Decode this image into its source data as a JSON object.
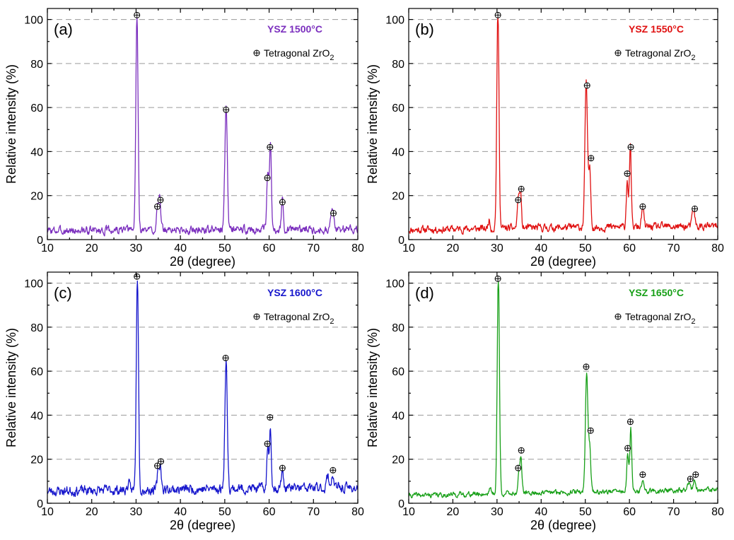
{
  "chart_data": [
    {
      "type": "line",
      "panel_label": "(a)",
      "sample_label": "YSZ 1500°C",
      "color": "#7b2fbe",
      "legend": {
        "symbol": "⊕",
        "label_main": "Tetragonal ZrO",
        "label_sub": "2"
      },
      "xlabel": "2θ (degree)",
      "ylabel": "Relative intensity (%)",
      "xlim": [
        10,
        80
      ],
      "ylim": [
        0,
        105
      ],
      "xticks": [
        10,
        20,
        30,
        40,
        50,
        60,
        70,
        80
      ],
      "yticks": [
        0,
        20,
        40,
        60,
        80,
        100
      ],
      "grid": "horizontal dashed",
      "peaks": [
        {
          "x": 30.2,
          "y": 100,
          "w": 0.35
        },
        {
          "x": 34.8,
          "y": 12,
          "w": 0.3
        },
        {
          "x": 35.3,
          "y": 15,
          "w": 0.3
        },
        {
          "x": 50.3,
          "y": 56,
          "w": 0.4
        },
        {
          "x": 59.7,
          "y": 25,
          "w": 0.3
        },
        {
          "x": 60.3,
          "y": 39,
          "w": 0.3
        },
        {
          "x": 63.0,
          "y": 14,
          "w": 0.3
        },
        {
          "x": 74.2,
          "y": 9,
          "w": 0.4
        }
      ],
      "peak_markers": [
        [
          30.2,
          102
        ],
        [
          34.8,
          15
        ],
        [
          35.5,
          18
        ],
        [
          50.3,
          59
        ],
        [
          59.6,
          28
        ],
        [
          60.2,
          42
        ],
        [
          63.0,
          17
        ],
        [
          74.5,
          12
        ]
      ],
      "baseline": [
        4,
        4.5,
        5
      ],
      "noise": 1.6,
      "seed": 3
    },
    {
      "type": "line",
      "panel_label": "(b)",
      "sample_label": "YSZ 1550°C",
      "color": "#e01010",
      "legend": {
        "symbol": "⊕",
        "label_main": "Tetragonal ZrO",
        "label_sub": "2"
      },
      "xlabel": "2θ (degree)",
      "ylabel": "Relative intensity (%)",
      "xlim": [
        10,
        80
      ],
      "ylim": [
        0,
        105
      ],
      "xticks": [
        10,
        20,
        30,
        40,
        50,
        60,
        70,
        80
      ],
      "yticks": [
        0,
        20,
        40,
        60,
        80,
        100
      ],
      "grid": "horizontal dashed",
      "peaks": [
        {
          "x": 28.2,
          "y": 4,
          "w": 0.3
        },
        {
          "x": 30.2,
          "y": 100,
          "w": 0.35
        },
        {
          "x": 34.8,
          "y": 14,
          "w": 0.3
        },
        {
          "x": 35.3,
          "y": 17,
          "w": 0.3
        },
        {
          "x": 50.2,
          "y": 66,
          "w": 0.4
        },
        {
          "x": 51.0,
          "y": 26,
          "w": 0.35
        },
        {
          "x": 59.5,
          "y": 22,
          "w": 0.3
        },
        {
          "x": 60.2,
          "y": 36,
          "w": 0.3
        },
        {
          "x": 63.0,
          "y": 9,
          "w": 0.35
        },
        {
          "x": 74.5,
          "y": 8,
          "w": 0.4
        }
      ],
      "peak_markers": [
        [
          30.2,
          102
        ],
        [
          34.8,
          18
        ],
        [
          35.5,
          23
        ],
        [
          50.4,
          70
        ],
        [
          51.3,
          37
        ],
        [
          59.5,
          30
        ],
        [
          60.3,
          42
        ],
        [
          63.0,
          15
        ],
        [
          74.8,
          14
        ]
      ],
      "baseline": [
        4.5,
        5.5,
        6
      ],
      "noise": 1.5,
      "seed": 11
    },
    {
      "type": "line",
      "panel_label": "(c)",
      "sample_label": "YSZ 1600°C",
      "color": "#1616cc",
      "legend": {
        "symbol": "⊕",
        "label_main": "Tetragonal ZrO",
        "label_sub": "2"
      },
      "xlabel": "2θ (degree)",
      "ylabel": "Relative intensity (%)",
      "xlim": [
        10,
        80
      ],
      "ylim": [
        0,
        105
      ],
      "xticks": [
        10,
        20,
        30,
        40,
        50,
        60,
        70,
        80
      ],
      "yticks": [
        0,
        20,
        40,
        60,
        80,
        100
      ],
      "grid": "horizontal dashed",
      "peaks": [
        {
          "x": 28.3,
          "y": 3,
          "w": 0.3
        },
        {
          "x": 30.3,
          "y": 100,
          "w": 0.35
        },
        {
          "x": 35.0,
          "y": 9,
          "w": 0.3
        },
        {
          "x": 35.5,
          "y": 11,
          "w": 0.3
        },
        {
          "x": 50.3,
          "y": 57,
          "w": 0.4
        },
        {
          "x": 59.7,
          "y": 18,
          "w": 0.3
        },
        {
          "x": 60.3,
          "y": 28,
          "w": 0.3
        },
        {
          "x": 63.0,
          "y": 8,
          "w": 0.35
        },
        {
          "x": 73.2,
          "y": 5,
          "w": 0.4
        },
        {
          "x": 74.3,
          "y": 6,
          "w": 0.4
        }
      ],
      "peak_markers": [
        [
          30.2,
          103
        ],
        [
          34.8,
          17
        ],
        [
          35.6,
          19
        ],
        [
          50.2,
          66
        ],
        [
          59.6,
          27
        ],
        [
          60.2,
          39
        ],
        [
          63.0,
          16
        ],
        [
          74.4,
          15
        ]
      ],
      "baseline": [
        5.5,
        6.5,
        7
      ],
      "noise": 2.0,
      "seed": 23
    },
    {
      "type": "line",
      "panel_label": "(d)",
      "sample_label": "YSZ 1650°C",
      "color": "#18a018",
      "legend": {
        "symbol": "⊕",
        "label_main": "Tetragonal ZrO",
        "label_sub": "2"
      },
      "xlabel": "2θ (degree)",
      "ylabel": "Relative intensity (%)",
      "xlim": [
        10,
        80
      ],
      "ylim": [
        0,
        105
      ],
      "xticks": [
        10,
        20,
        30,
        40,
        50,
        60,
        70,
        80
      ],
      "yticks": [
        0,
        20,
        40,
        60,
        80,
        100
      ],
      "grid": "horizontal dashed",
      "peaks": [
        {
          "x": 28.4,
          "y": 3,
          "w": 0.3
        },
        {
          "x": 30.3,
          "y": 100,
          "w": 0.35
        },
        {
          "x": 34.9,
          "y": 8,
          "w": 0.3
        },
        {
          "x": 35.4,
          "y": 17,
          "w": 0.3
        },
        {
          "x": 50.3,
          "y": 54,
          "w": 0.4
        },
        {
          "x": 51.0,
          "y": 20,
          "w": 0.35
        },
        {
          "x": 59.6,
          "y": 17,
          "w": 0.3
        },
        {
          "x": 60.3,
          "y": 28,
          "w": 0.3
        },
        {
          "x": 63.0,
          "y": 5,
          "w": 0.35
        },
        {
          "x": 73.5,
          "y": 3,
          "w": 0.4
        },
        {
          "x": 74.8,
          "y": 5,
          "w": 0.4
        }
      ],
      "peak_markers": [
        [
          30.2,
          102
        ],
        [
          34.8,
          16
        ],
        [
          35.5,
          24
        ],
        [
          50.2,
          62
        ],
        [
          51.2,
          33
        ],
        [
          59.6,
          25
        ],
        [
          60.2,
          37
        ],
        [
          63.0,
          13
        ],
        [
          73.8,
          11
        ],
        [
          75.0,
          13
        ]
      ],
      "baseline": [
        3.5,
        5,
        6
      ],
      "noise": 1.0,
      "seed": 41
    }
  ]
}
